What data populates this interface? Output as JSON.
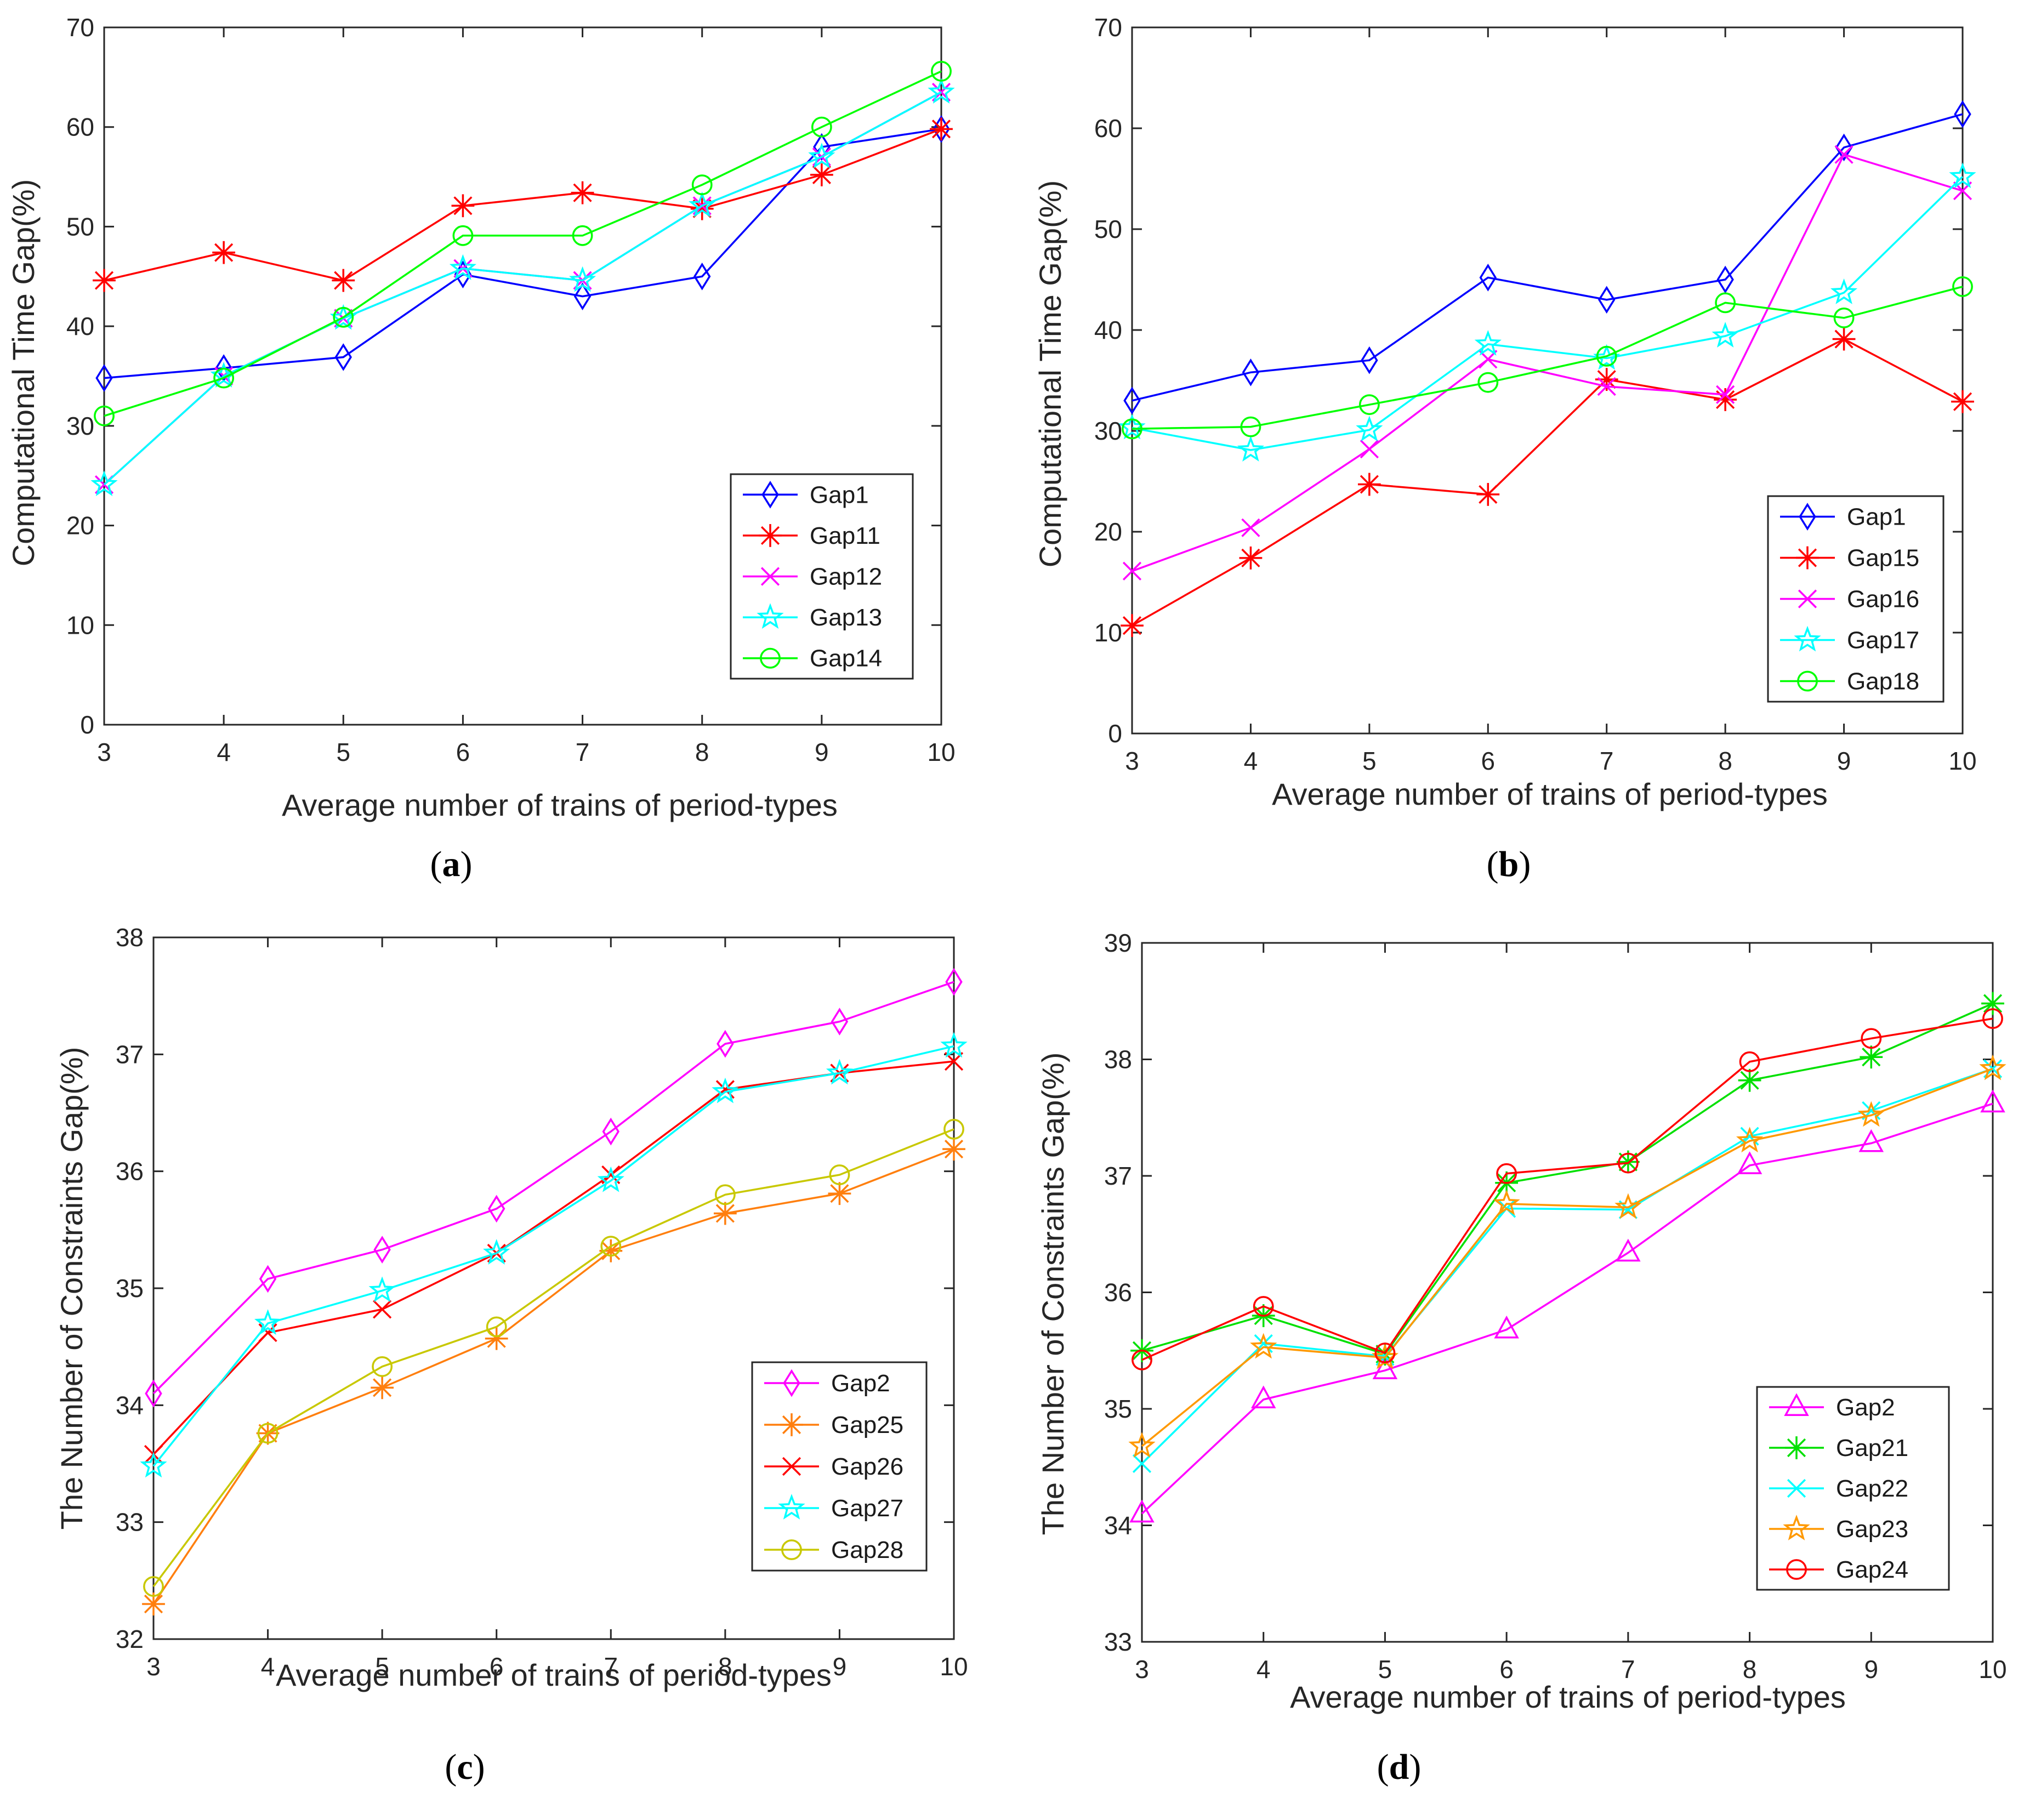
{
  "figure": {
    "captions": [
      "(a)",
      "(b)",
      "(c)",
      "(d)"
    ]
  },
  "chart_data": [
    {
      "type": "line",
      "caption": "(a)",
      "xlabel": "Average number of trains of period-types",
      "ylabel": "Computational Time Gap(%)",
      "x": [
        3,
        4,
        5,
        6,
        7,
        8,
        9,
        10
      ],
      "xlim": [
        3,
        10
      ],
      "ylim": [
        0,
        70
      ],
      "yticks": [
        0,
        10,
        20,
        30,
        40,
        50,
        60,
        70
      ],
      "grid": false,
      "legend_position": "lower-right",
      "series": [
        {
          "name": "Gap1",
          "color": "#0000ff",
          "marker": "diamond",
          "values": [
            34.8,
            35.8,
            36.9,
            45.2,
            43.0,
            45.0,
            58.0,
            59.8
          ]
        },
        {
          "name": "Gap11",
          "color": "#ff0000",
          "marker": "asterisk",
          "values": [
            44.6,
            47.4,
            44.6,
            52.1,
            53.4,
            51.8,
            55.2,
            59.8
          ]
        },
        {
          "name": "Gap12",
          "color": "#ff00ff",
          "marker": "x",
          "values": [
            24.1,
            35.0,
            40.8,
            45.8,
            44.6,
            52.1,
            57.0,
            63.5
          ]
        },
        {
          "name": "Gap13",
          "color": "#00ffff",
          "marker": "star",
          "values": [
            24.1,
            35.0,
            40.8,
            45.8,
            44.6,
            52.1,
            57.0,
            63.5
          ]
        },
        {
          "name": "Gap14",
          "color": "#00ff00",
          "marker": "circle",
          "values": [
            31.0,
            34.8,
            40.9,
            49.1,
            49.1,
            54.2,
            60.0,
            65.6
          ]
        }
      ]
    },
    {
      "type": "line",
      "caption": "(b)",
      "xlabel": "Average number of trains of period-types",
      "ylabel": "Computational Time Gap(%)",
      "x": [
        3,
        4,
        5,
        6,
        7,
        8,
        9,
        10
      ],
      "xlim": [
        3,
        10
      ],
      "ylim": [
        0,
        70
      ],
      "yticks": [
        0,
        10,
        20,
        30,
        40,
        50,
        60,
        70
      ],
      "grid": false,
      "legend_position": "lower-right",
      "series": [
        {
          "name": "Gap1",
          "color": "#0000ff",
          "marker": "diamond",
          "values": [
            33.0,
            35.8,
            37.0,
            45.2,
            43.0,
            45.0,
            58.1,
            61.4
          ]
        },
        {
          "name": "Gap15",
          "color": "#ff0000",
          "marker": "asterisk",
          "values": [
            10.7,
            17.4,
            24.7,
            23.7,
            35.1,
            33.1,
            39.1,
            32.9
          ]
        },
        {
          "name": "Gap16",
          "color": "#ff00ff",
          "marker": "x",
          "values": [
            16.1,
            20.4,
            28.2,
            37.1,
            34.4,
            33.6,
            57.4,
            53.8
          ]
        },
        {
          "name": "Gap17",
          "color": "#00ffff",
          "marker": "star",
          "values": [
            30.3,
            28.1,
            30.1,
            38.6,
            37.2,
            39.4,
            43.7,
            55.2
          ]
        },
        {
          "name": "Gap18",
          "color": "#00ff00",
          "marker": "circle",
          "values": [
            30.2,
            30.4,
            32.6,
            34.8,
            37.4,
            42.7,
            41.2,
            44.3
          ]
        }
      ]
    },
    {
      "type": "line",
      "caption": "(c)",
      "xlabel": "Average number of trains of period-types",
      "ylabel": "The Number of Constraints Gap(%)",
      "x": [
        3,
        4,
        5,
        6,
        7,
        8,
        9,
        10
      ],
      "xlim": [
        3,
        10
      ],
      "ylim": [
        32,
        38
      ],
      "yticks": [
        32,
        33,
        34,
        35,
        36,
        37,
        38
      ],
      "grid": false,
      "legend_position": "lower-right",
      "series": [
        {
          "name": "Gap2",
          "color": "#ff00ff",
          "marker": "diamond",
          "values": [
            34.1,
            35.08,
            35.33,
            35.68,
            36.34,
            37.09,
            37.28,
            37.62
          ]
        },
        {
          "name": "Gap25",
          "color": "#ff7f0e",
          "marker": "asterisk",
          "values": [
            32.3,
            33.76,
            34.15,
            34.57,
            35.32,
            35.64,
            35.81,
            36.19
          ]
        },
        {
          "name": "Gap26",
          "color": "#ff0000",
          "marker": "x",
          "values": [
            33.58,
            34.62,
            34.82,
            35.3,
            35.97,
            36.7,
            36.84,
            36.94
          ]
        },
        {
          "name": "Gap27",
          "color": "#00ffff",
          "marker": "star",
          "values": [
            33.48,
            34.7,
            34.98,
            35.3,
            35.92,
            36.68,
            36.84,
            37.07
          ]
        },
        {
          "name": "Gap28",
          "color": "#c8c800",
          "marker": "circle",
          "values": [
            32.45,
            33.76,
            34.33,
            34.67,
            35.36,
            35.8,
            35.97,
            36.36
          ]
        }
      ]
    },
    {
      "type": "line",
      "caption": "(d)",
      "xlabel": "Average number of trains of period-types",
      "ylabel": "The Number of Constraints Gap(%)",
      "x": [
        3,
        4,
        5,
        6,
        7,
        8,
        9,
        10
      ],
      "xlim": [
        3,
        10
      ],
      "ylim": [
        33,
        39
      ],
      "yticks": [
        33,
        34,
        35,
        36,
        37,
        38,
        39
      ],
      "grid": false,
      "legend_position": "lower-right",
      "series": [
        {
          "name": "Gap2",
          "color": "#ff00ff",
          "marker": "triangle",
          "values": [
            34.1,
            35.08,
            35.33,
            35.68,
            36.34,
            37.09,
            37.28,
            37.62
          ]
        },
        {
          "name": "Gap21",
          "color": "#00e000",
          "marker": "asterisk",
          "values": [
            35.5,
            35.8,
            35.47,
            36.94,
            37.12,
            37.82,
            38.02,
            38.48
          ]
        },
        {
          "name": "Gap22",
          "color": "#00ffff",
          "marker": "x",
          "values": [
            34.53,
            35.56,
            35.45,
            36.72,
            36.71,
            37.34,
            37.56,
            37.92
          ]
        },
        {
          "name": "Gap23",
          "color": "#ff9900",
          "marker": "star",
          "values": [
            34.68,
            35.53,
            35.44,
            36.76,
            36.73,
            37.3,
            37.52,
            37.92
          ]
        },
        {
          "name": "Gap24",
          "color": "#ff0000",
          "marker": "circle",
          "values": [
            35.42,
            35.88,
            35.48,
            37.02,
            37.11,
            37.98,
            38.18,
            38.35
          ]
        }
      ]
    }
  ]
}
